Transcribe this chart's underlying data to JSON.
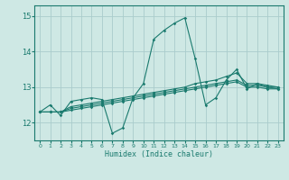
{
  "xlabel": "Humidex (Indice chaleur)",
  "xlim": [
    -0.5,
    23.5
  ],
  "ylim": [
    11.5,
    15.3
  ],
  "yticks": [
    12,
    13,
    14,
    15
  ],
  "xticks": [
    0,
    1,
    2,
    3,
    4,
    5,
    6,
    7,
    8,
    9,
    10,
    11,
    12,
    13,
    14,
    15,
    16,
    17,
    18,
    19,
    20,
    21,
    22,
    23
  ],
  "background_color": "#cee8e4",
  "grid_color": "#aacccc",
  "line_color": "#1a7a6e",
  "lines": [
    {
      "x": [
        0,
        1,
        2,
        3,
        4,
        5,
        6,
        7,
        8,
        9,
        10,
        11,
        12,
        13,
        14,
        15,
        16,
        17,
        18,
        19,
        20,
        21,
        22,
        23
      ],
      "y": [
        12.3,
        12.5,
        12.2,
        12.6,
        12.65,
        12.7,
        12.65,
        11.7,
        11.85,
        12.7,
        13.1,
        14.35,
        14.6,
        14.8,
        14.95,
        13.8,
        12.5,
        12.7,
        13.2,
        13.5,
        12.95,
        13.1,
        13.0,
        12.95
      ]
    },
    {
      "x": [
        0,
        1,
        2,
        3,
        4,
        5,
        6,
        7,
        8,
        9,
        10,
        11,
        12,
        13,
        14,
        15,
        16,
        17,
        18,
        19,
        20,
        21,
        22,
        23
      ],
      "y": [
        12.3,
        12.3,
        12.3,
        12.45,
        12.5,
        12.55,
        12.6,
        12.65,
        12.7,
        12.75,
        12.8,
        12.85,
        12.9,
        12.95,
        13.0,
        13.1,
        13.15,
        13.2,
        13.3,
        13.4,
        13.1,
        13.1,
        13.05,
        13.0
      ]
    },
    {
      "x": [
        0,
        1,
        2,
        3,
        4,
        5,
        6,
        7,
        8,
        9,
        10,
        11,
        12,
        13,
        14,
        15,
        16,
        17,
        18,
        19,
        20,
        21,
        22,
        23
      ],
      "y": [
        12.3,
        12.3,
        12.3,
        12.4,
        12.45,
        12.5,
        12.55,
        12.6,
        12.65,
        12.7,
        12.75,
        12.8,
        12.85,
        12.9,
        12.95,
        13.0,
        13.05,
        13.1,
        13.15,
        13.2,
        13.05,
        13.05,
        13.0,
        13.0
      ]
    },
    {
      "x": [
        0,
        1,
        2,
        3,
        4,
        5,
        6,
        7,
        8,
        9,
        10,
        11,
        12,
        13,
        14,
        15,
        16,
        17,
        18,
        19,
        20,
        21,
        22,
        23
      ],
      "y": [
        12.3,
        12.3,
        12.3,
        12.35,
        12.4,
        12.45,
        12.5,
        12.55,
        12.6,
        12.65,
        12.7,
        12.75,
        12.8,
        12.85,
        12.9,
        12.95,
        13.0,
        13.05,
        13.1,
        13.15,
        13.0,
        13.0,
        12.95,
        12.95
      ]
    }
  ]
}
